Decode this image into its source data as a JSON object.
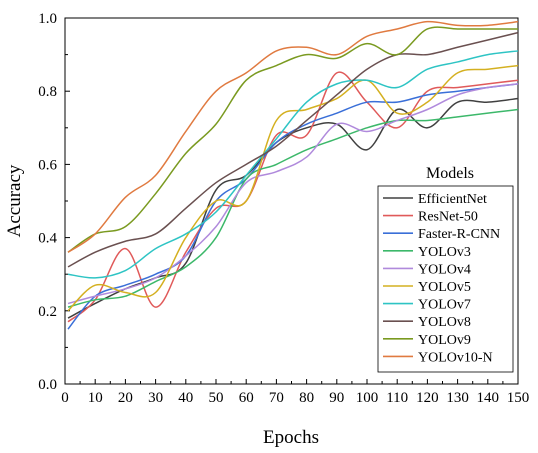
{
  "chart_data": {
    "type": "line",
    "xlabel": "Epochs",
    "ylabel": "Accuracy",
    "xlim": [
      0,
      150
    ],
    "ylim": [
      0.0,
      1.0
    ],
    "xticks": [
      "0",
      "10",
      "20",
      "30",
      "40",
      "50",
      "60",
      "70",
      "80",
      "90",
      "100",
      "110",
      "120",
      "130",
      "140",
      "150"
    ],
    "yticks": [
      "0.0",
      "0.2",
      "0.4",
      "0.6",
      "0.8",
      "1.0"
    ],
    "grid": false,
    "legend": {
      "title": "Models",
      "position": "right"
    },
    "x": [
      1,
      10,
      20,
      30,
      40,
      50,
      60,
      70,
      80,
      90,
      100,
      110,
      120,
      130,
      140,
      150
    ],
    "series": [
      {
        "name": "EfficientNet",
        "color": "#404040",
        "values": [
          0.18,
          0.22,
          0.26,
          0.29,
          0.33,
          0.53,
          0.57,
          0.66,
          0.7,
          0.71,
          0.64,
          0.75,
          0.7,
          0.77,
          0.77,
          0.78
        ]
      },
      {
        "name": "ResNet-50",
        "color": "#e05a5a",
        "values": [
          0.17,
          0.23,
          0.37,
          0.21,
          0.36,
          0.48,
          0.5,
          0.68,
          0.68,
          0.85,
          0.77,
          0.7,
          0.8,
          0.81,
          0.82,
          0.83
        ]
      },
      {
        "name": "Faster-R-CNN",
        "color": "#3a6fd8",
        "values": [
          0.15,
          0.24,
          0.27,
          0.3,
          0.35,
          0.5,
          0.56,
          0.66,
          0.71,
          0.74,
          0.77,
          0.77,
          0.79,
          0.8,
          0.81,
          0.82
        ]
      },
      {
        "name": "YOLOv3",
        "color": "#3cb86a",
        "values": [
          0.21,
          0.23,
          0.24,
          0.28,
          0.32,
          0.4,
          0.56,
          0.6,
          0.64,
          0.67,
          0.7,
          0.72,
          0.72,
          0.73,
          0.74,
          0.75
        ]
      },
      {
        "name": "YOLOv4",
        "color": "#b08adc",
        "values": [
          0.22,
          0.24,
          0.26,
          0.29,
          0.35,
          0.43,
          0.55,
          0.58,
          0.62,
          0.71,
          0.69,
          0.72,
          0.75,
          0.79,
          0.81,
          0.82
        ]
      },
      {
        "name": "YOLOv5",
        "color": "#d4b020",
        "values": [
          0.2,
          0.27,
          0.25,
          0.25,
          0.4,
          0.5,
          0.5,
          0.72,
          0.75,
          0.78,
          0.83,
          0.74,
          0.77,
          0.85,
          0.86,
          0.87
        ]
      },
      {
        "name": "YOLOv7",
        "color": "#2ec4c4",
        "values": [
          0.3,
          0.29,
          0.31,
          0.37,
          0.41,
          0.47,
          0.57,
          0.67,
          0.77,
          0.82,
          0.83,
          0.81,
          0.86,
          0.88,
          0.9,
          0.91
        ]
      },
      {
        "name": "YOLOv8",
        "color": "#6a5050",
        "values": [
          0.32,
          0.36,
          0.39,
          0.41,
          0.48,
          0.55,
          0.6,
          0.65,
          0.72,
          0.79,
          0.86,
          0.9,
          0.9,
          0.92,
          0.94,
          0.96
        ]
      },
      {
        "name": "YOLOv9",
        "color": "#7a9a20",
        "values": [
          0.36,
          0.41,
          0.43,
          0.52,
          0.63,
          0.71,
          0.83,
          0.87,
          0.9,
          0.89,
          0.93,
          0.9,
          0.97,
          0.97,
          0.97,
          0.97
        ]
      },
      {
        "name": "YOLOv10-N",
        "color": "#e07a40",
        "values": [
          0.36,
          0.41,
          0.51,
          0.57,
          0.69,
          0.8,
          0.85,
          0.91,
          0.92,
          0.9,
          0.95,
          0.97,
          0.99,
          0.98,
          0.98,
          0.99
        ]
      }
    ]
  }
}
